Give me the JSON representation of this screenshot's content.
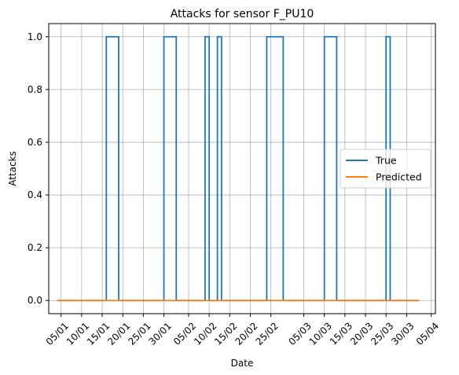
{
  "chart_data": {
    "type": "line",
    "title": "Attacks for sensor F_PU10",
    "xlabel": "Date",
    "ylabel": "Attacks",
    "x_axis_type": "date",
    "year": 2017,
    "xlim": [
      "2017-01-02",
      "2017-04-06"
    ],
    "ylim": [
      -0.05,
      1.05
    ],
    "x_ticks": [
      "2017-01-05",
      "2017-01-10",
      "2017-01-15",
      "2017-01-20",
      "2017-01-25",
      "2017-01-30",
      "2017-02-05",
      "2017-02-10",
      "2017-02-15",
      "2017-02-20",
      "2017-02-25",
      "2017-03-05",
      "2017-03-10",
      "2017-03-15",
      "2017-03-20",
      "2017-03-25",
      "2017-03-30",
      "2017-04-05"
    ],
    "x_tick_labels": [
      "05/01",
      "10/01",
      "15/01",
      "20/01",
      "25/01",
      "30/01",
      "05/02",
      "10/02",
      "15/02",
      "20/02",
      "25/02",
      "05/03",
      "10/03",
      "15/03",
      "20/03",
      "25/03",
      "30/03",
      "05/04"
    ],
    "y_ticks": [
      0.0,
      0.2,
      0.4,
      0.6,
      0.8,
      1.0
    ],
    "y_tick_labels": [
      "0.0",
      "0.2",
      "0.4",
      "0.6",
      "0.8",
      "1.0"
    ],
    "grid": true,
    "legend_position": "center-right",
    "series": [
      {
        "name": "True",
        "color": "#1f77b4",
        "step": true,
        "points": [
          [
            "2017-01-04",
            0
          ],
          [
            "2017-01-16",
            0
          ],
          [
            "2017-01-16",
            1
          ],
          [
            "2017-01-19",
            1
          ],
          [
            "2017-01-19",
            0
          ],
          [
            "2017-01-30",
            0
          ],
          [
            "2017-01-30",
            1
          ],
          [
            "2017-02-02",
            1
          ],
          [
            "2017-02-02",
            0
          ],
          [
            "2017-02-09",
            0
          ],
          [
            "2017-02-09",
            1
          ],
          [
            "2017-02-10",
            1
          ],
          [
            "2017-02-10",
            0
          ],
          [
            "2017-02-12",
            0
          ],
          [
            "2017-02-12",
            1
          ],
          [
            "2017-02-13",
            1
          ],
          [
            "2017-02-13",
            0
          ],
          [
            "2017-02-24",
            0
          ],
          [
            "2017-02-24",
            1
          ],
          [
            "2017-02-28",
            1
          ],
          [
            "2017-02-28",
            0
          ],
          [
            "2017-03-10",
            0
          ],
          [
            "2017-03-10",
            1
          ],
          [
            "2017-03-13",
            1
          ],
          [
            "2017-03-13",
            0
          ],
          [
            "2017-03-25",
            0
          ],
          [
            "2017-03-25",
            1
          ],
          [
            "2017-03-26",
            1
          ],
          [
            "2017-03-26",
            0
          ],
          [
            "2017-04-02",
            0
          ]
        ]
      },
      {
        "name": "Predicted",
        "color": "#ff7f0e",
        "step": true,
        "points": [
          [
            "2017-01-04",
            0
          ],
          [
            "2017-04-02",
            0
          ]
        ]
      }
    ]
  }
}
